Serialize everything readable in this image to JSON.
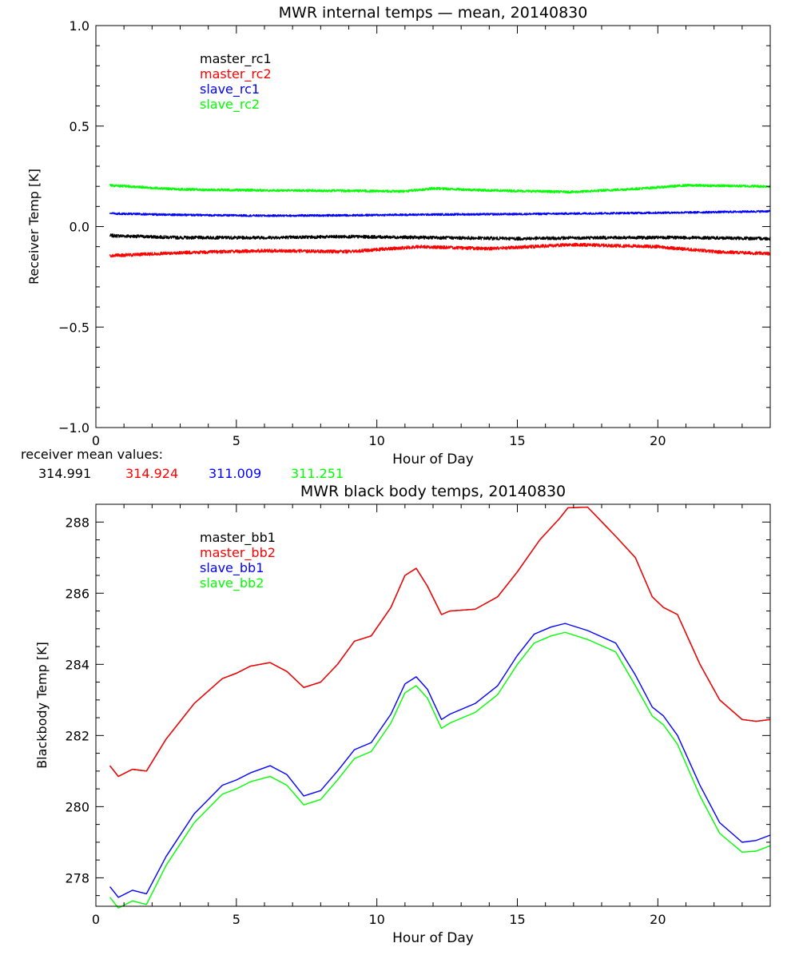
{
  "chart_data": [
    {
      "type": "line",
      "title": "MWR internal temps — mean, 20140830",
      "xlabel": "Hour of Day",
      "ylabel": "Receiver Temp [K]",
      "xlim": [
        0,
        24
      ],
      "ylim": [
        -1.0,
        1.0
      ],
      "x_ticks": [
        0,
        5,
        10,
        15,
        20
      ],
      "y_ticks": [
        -1.0,
        -0.5,
        0.0,
        0.5,
        1.0
      ],
      "grid": false,
      "legend_position": "top-left",
      "noise_amplitude": [
        0.008,
        0.008,
        0.005,
        0.006
      ],
      "series": [
        {
          "name": "master_rc1",
          "color": "#000000",
          "points": [
            [
              0.5,
              -0.045
            ],
            [
              3,
              -0.055
            ],
            [
              6,
              -0.055
            ],
            [
              9,
              -0.05
            ],
            [
              12,
              -0.055
            ],
            [
              15,
              -0.06
            ],
            [
              18,
              -0.055
            ],
            [
              21,
              -0.055
            ],
            [
              24,
              -0.06
            ]
          ]
        },
        {
          "name": "master_rc2",
          "color": "#ff0000",
          "points": [
            [
              0.5,
              -0.145
            ],
            [
              3,
              -0.13
            ],
            [
              6,
              -0.12
            ],
            [
              9,
              -0.125
            ],
            [
              11.5,
              -0.1
            ],
            [
              14,
              -0.11
            ],
            [
              17,
              -0.09
            ],
            [
              20,
              -0.1
            ],
            [
              22,
              -0.125
            ],
            [
              24,
              -0.135
            ]
          ]
        },
        {
          "name": "slave_rc1",
          "color": "#0000ff",
          "points": [
            [
              0.5,
              0.065
            ],
            [
              3,
              0.058
            ],
            [
              6,
              0.054
            ],
            [
              9,
              0.056
            ],
            [
              12,
              0.06
            ],
            [
              15,
              0.062
            ],
            [
              18,
              0.066
            ],
            [
              21,
              0.07
            ],
            [
              24,
              0.076
            ]
          ]
        },
        {
          "name": "slave_rc2",
          "color": "#00ff00",
          "points": [
            [
              0.5,
              0.205
            ],
            [
              3,
              0.185
            ],
            [
              6,
              0.18
            ],
            [
              9,
              0.178
            ],
            [
              11,
              0.175
            ],
            [
              12,
              0.19
            ],
            [
              14,
              0.18
            ],
            [
              17,
              0.172
            ],
            [
              19.5,
              0.19
            ],
            [
              21,
              0.205
            ],
            [
              24,
              0.2
            ]
          ]
        }
      ],
      "annotations": {
        "label": "receiver mean values:",
        "values": [
          {
            "text": "314.991",
            "color": "#000000"
          },
          {
            "text": "314.924",
            "color": "#ff0000"
          },
          {
            "text": "311.009",
            "color": "#0000ff"
          },
          {
            "text": "311.251",
            "color": "#00ff00"
          }
        ]
      }
    },
    {
      "type": "line",
      "title": "MWR black body temps, 20140830",
      "xlabel": "Hour of Day",
      "ylabel": "Blackbody Temp [K]",
      "xlim": [
        0,
        24
      ],
      "ylim": [
        277.2,
        288.5
      ],
      "x_ticks": [
        0,
        5,
        10,
        15,
        20
      ],
      "y_ticks": [
        278,
        280,
        282,
        284,
        286,
        288
      ],
      "grid": false,
      "legend_position": "top-left",
      "series": [
        {
          "name": "master_bb1",
          "color": "#000000",
          "points": [
            [
              0.5,
              281.15
            ],
            [
              0.8,
              280.85
            ],
            [
              1.3,
              281.05
            ],
            [
              1.8,
              281.0
            ],
            [
              2.5,
              281.9
            ],
            [
              3.5,
              282.9
            ],
            [
              4.5,
              283.6
            ],
            [
              5.0,
              283.75
            ],
            [
              5.5,
              283.95
            ],
            [
              6.2,
              284.05
            ],
            [
              6.8,
              283.8
            ],
            [
              7.4,
              283.35
            ],
            [
              8.0,
              283.5
            ],
            [
              8.6,
              284.0
            ],
            [
              9.2,
              284.65
            ],
            [
              9.8,
              284.8
            ],
            [
              10.5,
              285.6
            ],
            [
              11.0,
              286.5
            ],
            [
              11.4,
              286.7
            ],
            [
              11.8,
              286.2
            ],
            [
              12.3,
              285.4
            ],
            [
              12.6,
              285.5
            ],
            [
              13.5,
              285.55
            ],
            [
              14.3,
              285.9
            ],
            [
              15.0,
              286.6
            ],
            [
              15.8,
              287.5
            ],
            [
              16.5,
              288.1
            ],
            [
              16.8,
              288.4
            ],
            [
              17.5,
              288.42
            ],
            [
              18.5,
              287.6
            ],
            [
              19.2,
              287.0
            ],
            [
              19.8,
              285.9
            ],
            [
              20.2,
              285.6
            ],
            [
              20.7,
              285.4
            ],
            [
              21.5,
              284.0
            ],
            [
              22.2,
              283.0
            ],
            [
              23.0,
              282.45
            ],
            [
              23.5,
              282.4
            ],
            [
              24.0,
              282.45
            ]
          ]
        },
        {
          "name": "master_bb2",
          "color": "#ff0000",
          "points": [
            [
              0.5,
              281.15
            ],
            [
              0.8,
              280.85
            ],
            [
              1.3,
              281.05
            ],
            [
              1.8,
              281.0
            ],
            [
              2.5,
              281.9
            ],
            [
              3.5,
              282.9
            ],
            [
              4.5,
              283.6
            ],
            [
              5.0,
              283.75
            ],
            [
              5.5,
              283.95
            ],
            [
              6.2,
              284.05
            ],
            [
              6.8,
              283.8
            ],
            [
              7.4,
              283.35
            ],
            [
              8.0,
              283.5
            ],
            [
              8.6,
              284.0
            ],
            [
              9.2,
              284.65
            ],
            [
              9.8,
              284.8
            ],
            [
              10.5,
              285.6
            ],
            [
              11.0,
              286.5
            ],
            [
              11.4,
              286.7
            ],
            [
              11.8,
              286.2
            ],
            [
              12.3,
              285.4
            ],
            [
              12.6,
              285.5
            ],
            [
              13.5,
              285.55
            ],
            [
              14.3,
              285.9
            ],
            [
              15.0,
              286.6
            ],
            [
              15.8,
              287.5
            ],
            [
              16.5,
              288.1
            ],
            [
              16.8,
              288.4
            ],
            [
              17.5,
              288.42
            ],
            [
              18.5,
              287.6
            ],
            [
              19.2,
              287.0
            ],
            [
              19.8,
              285.9
            ],
            [
              20.2,
              285.6
            ],
            [
              20.7,
              285.4
            ],
            [
              21.5,
              284.0
            ],
            [
              22.2,
              283.0
            ],
            [
              23.0,
              282.45
            ],
            [
              23.5,
              282.4
            ],
            [
              24.0,
              282.45
            ]
          ]
        },
        {
          "name": "slave_bb1",
          "color": "#0000ff",
          "points": [
            [
              0.5,
              277.75
            ],
            [
              0.8,
              277.45
            ],
            [
              1.3,
              277.65
            ],
            [
              1.8,
              277.55
            ],
            [
              2.5,
              278.6
            ],
            [
              3.5,
              279.8
            ],
            [
              4.5,
              280.6
            ],
            [
              5.0,
              280.75
            ],
            [
              5.5,
              280.95
            ],
            [
              6.2,
              281.15
            ],
            [
              6.8,
              280.9
            ],
            [
              7.4,
              280.3
            ],
            [
              8.0,
              280.45
            ],
            [
              8.6,
              281.0
            ],
            [
              9.2,
              281.6
            ],
            [
              9.8,
              281.8
            ],
            [
              10.5,
              282.6
            ],
            [
              11.0,
              283.45
            ],
            [
              11.4,
              283.65
            ],
            [
              11.8,
              283.3
            ],
            [
              12.3,
              282.45
            ],
            [
              12.6,
              282.6
            ],
            [
              13.5,
              282.9
            ],
            [
              14.3,
              283.4
            ],
            [
              15.0,
              284.25
            ],
            [
              15.6,
              284.85
            ],
            [
              16.2,
              285.05
            ],
            [
              16.7,
              285.15
            ],
            [
              17.5,
              284.95
            ],
            [
              18.5,
              284.6
            ],
            [
              19.2,
              283.7
            ],
            [
              19.8,
              282.8
            ],
            [
              20.2,
              282.55
            ],
            [
              20.7,
              282.0
            ],
            [
              21.5,
              280.6
            ],
            [
              22.2,
              279.55
            ],
            [
              23.0,
              279.0
            ],
            [
              23.5,
              279.05
            ],
            [
              24.0,
              279.2
            ]
          ]
        },
        {
          "name": "slave_bb2",
          "color": "#00ff00",
          "points": [
            [
              0.5,
              277.45
            ],
            [
              0.8,
              277.15
            ],
            [
              1.3,
              277.35
            ],
            [
              1.8,
              277.25
            ],
            [
              2.5,
              278.35
            ],
            [
              3.5,
              279.55
            ],
            [
              4.5,
              280.35
            ],
            [
              5.0,
              280.5
            ],
            [
              5.5,
              280.7
            ],
            [
              6.2,
              280.85
            ],
            [
              6.8,
              280.6
            ],
            [
              7.4,
              280.05
            ],
            [
              8.0,
              280.2
            ],
            [
              8.6,
              280.75
            ],
            [
              9.2,
              281.35
            ],
            [
              9.8,
              281.55
            ],
            [
              10.5,
              282.35
            ],
            [
              11.0,
              283.2
            ],
            [
              11.4,
              283.4
            ],
            [
              11.8,
              283.05
            ],
            [
              12.3,
              282.2
            ],
            [
              12.6,
              282.35
            ],
            [
              13.5,
              282.65
            ],
            [
              14.3,
              283.15
            ],
            [
              15.0,
              284.0
            ],
            [
              15.6,
              284.6
            ],
            [
              16.2,
              284.8
            ],
            [
              16.7,
              284.9
            ],
            [
              17.5,
              284.7
            ],
            [
              18.5,
              284.35
            ],
            [
              19.2,
              283.4
            ],
            [
              19.8,
              282.55
            ],
            [
              20.2,
              282.3
            ],
            [
              20.7,
              281.75
            ],
            [
              21.5,
              280.3
            ],
            [
              22.2,
              279.25
            ],
            [
              23.0,
              278.72
            ],
            [
              23.5,
              278.75
            ],
            [
              24.0,
              278.9
            ]
          ]
        }
      ]
    }
  ]
}
